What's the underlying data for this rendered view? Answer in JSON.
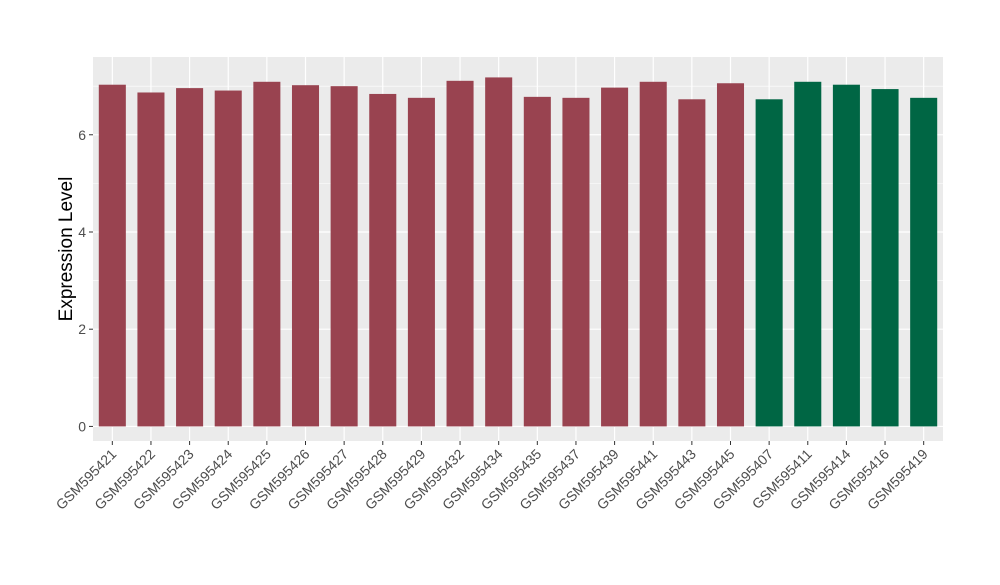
{
  "chart_data": {
    "type": "bar",
    "title": "",
    "xlabel": "",
    "ylabel": "Expression Level",
    "ylim": [
      -0.3,
      7.6
    ],
    "yticks": [
      0,
      2,
      4,
      6
    ],
    "ytick_labels": [
      "0",
      "2",
      "4",
      "6"
    ],
    "grid": true,
    "legend": "none",
    "categories": [
      "GSM595421",
      "GSM595422",
      "GSM595423",
      "GSM595424",
      "GSM595425",
      "GSM595426",
      "GSM595427",
      "GSM595428",
      "GSM595429",
      "GSM595432",
      "GSM595434",
      "GSM595435",
      "GSM595437",
      "GSM595439",
      "GSM595441",
      "GSM595443",
      "GSM595445",
      "GSM595407",
      "GSM595411",
      "GSM595414",
      "GSM595416",
      "GSM595419"
    ],
    "values": [
      7.03,
      6.87,
      6.96,
      6.91,
      7.09,
      7.02,
      7.0,
      6.84,
      6.76,
      7.11,
      7.18,
      6.78,
      6.76,
      6.97,
      7.09,
      6.73,
      7.06,
      6.73,
      7.09,
      7.03,
      6.94,
      6.76
    ],
    "groups": [
      "g1",
      "g1",
      "g1",
      "g1",
      "g1",
      "g1",
      "g1",
      "g1",
      "g1",
      "g1",
      "g1",
      "g1",
      "g1",
      "g1",
      "g1",
      "g1",
      "g1",
      "g2",
      "g2",
      "g2",
      "g2",
      "g2"
    ],
    "group_colors": {
      "g1": "#994350",
      "g2": "#006644"
    },
    "panel_color": "#ebebeb",
    "grid_color": "#ffffff"
  }
}
